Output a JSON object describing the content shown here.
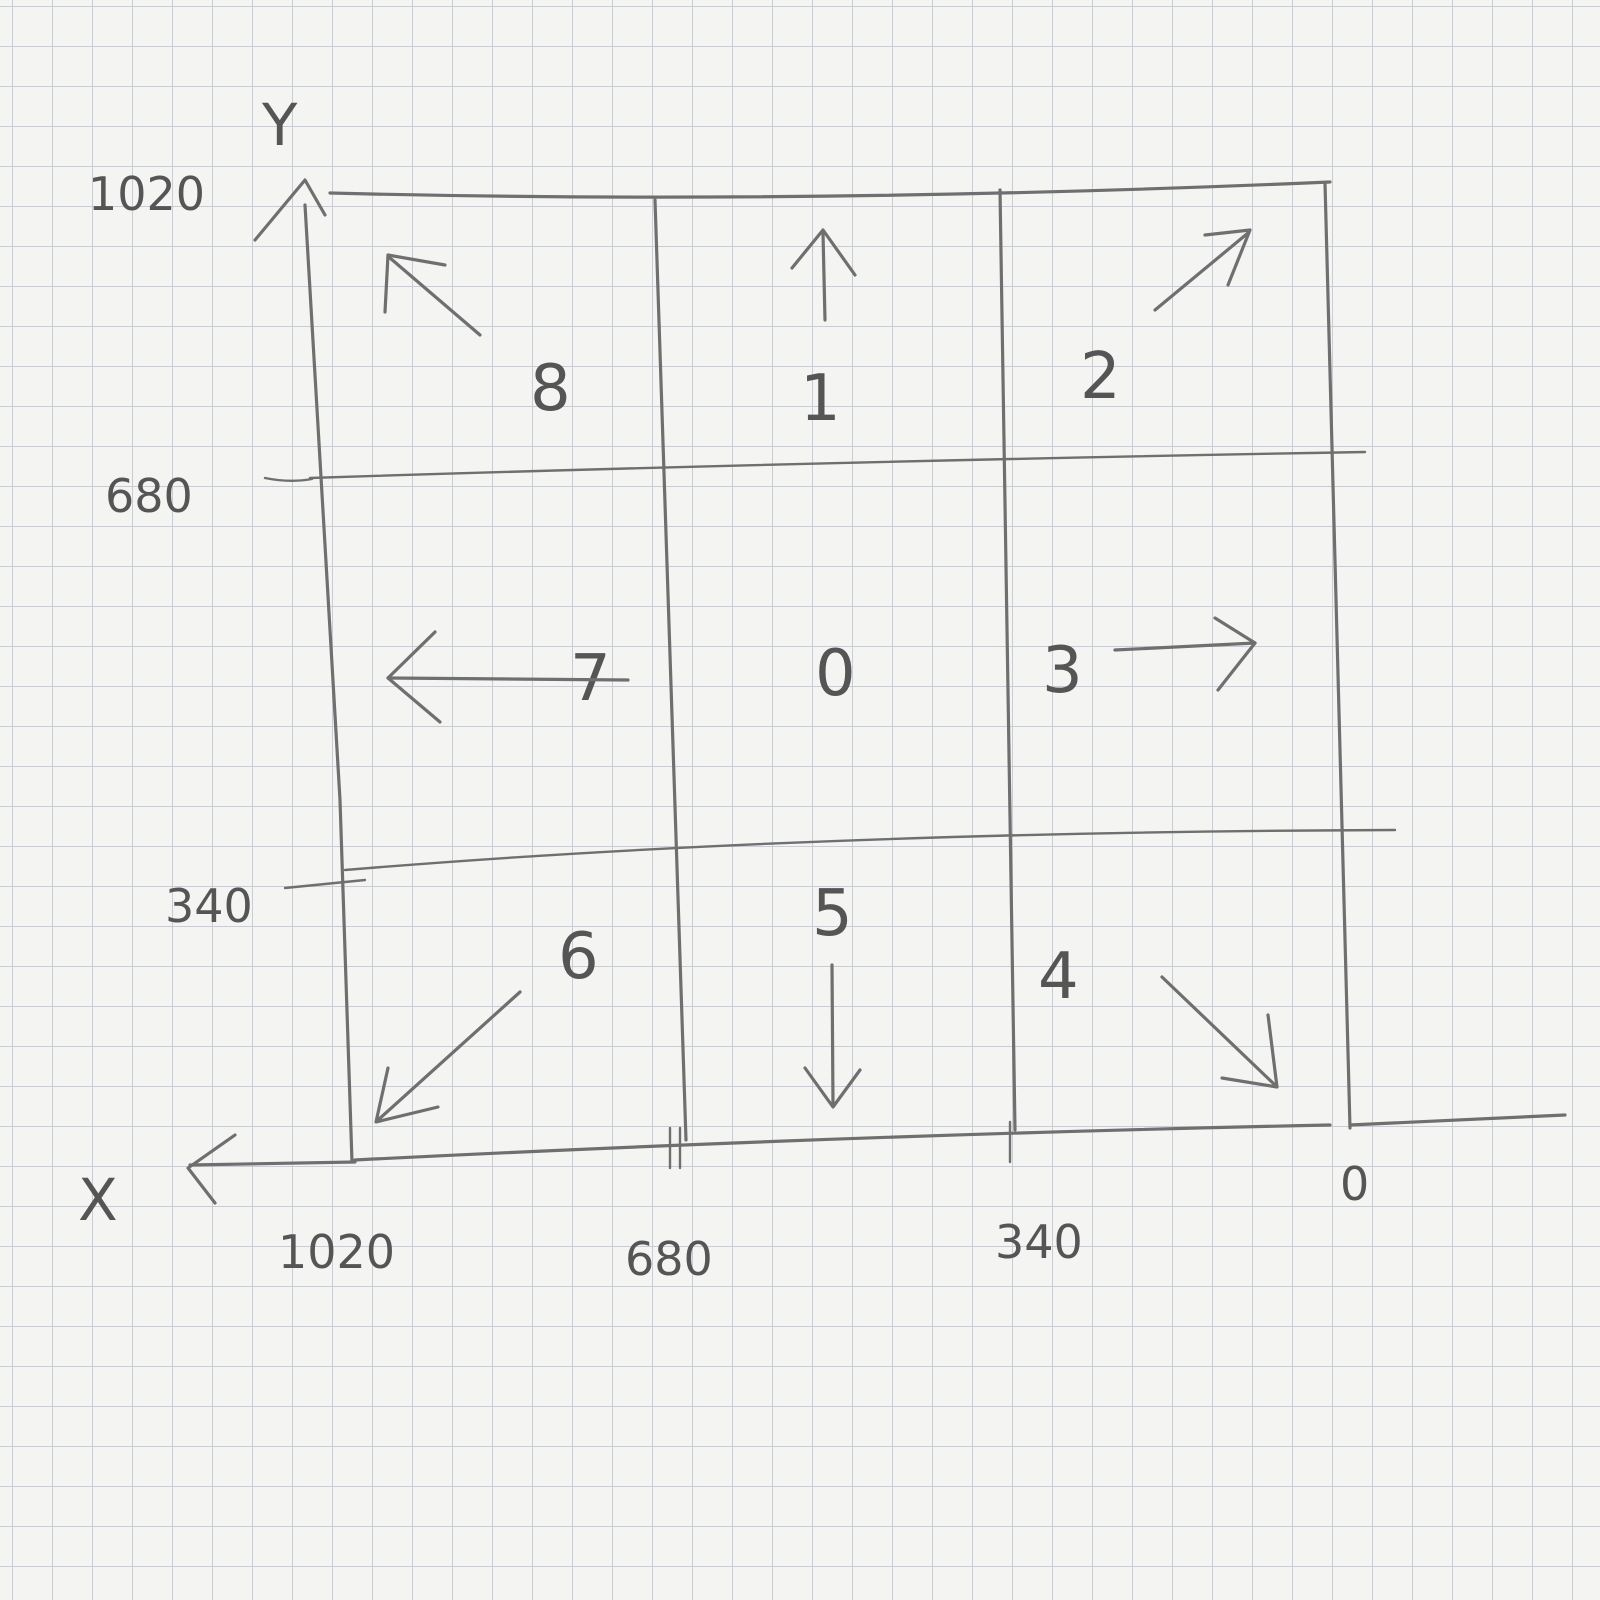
{
  "axes": {
    "x_label": "X",
    "y_label": "Y",
    "x_ticks": [
      "1020",
      "680",
      "340",
      "0"
    ],
    "y_ticks": [
      "1020",
      "680",
      "340"
    ]
  },
  "cells": [
    {
      "label": "8",
      "direction": "up-left"
    },
    {
      "label": "1",
      "direction": "up"
    },
    {
      "label": "2",
      "direction": "up-right"
    },
    {
      "label": "7",
      "direction": "left"
    },
    {
      "label": "0",
      "direction": "none"
    },
    {
      "label": "3",
      "direction": "right"
    },
    {
      "label": "6",
      "direction": "down-left"
    },
    {
      "label": "5",
      "direction": "down"
    },
    {
      "label": "4",
      "direction": "down-right"
    }
  ],
  "colors": {
    "paper": "#f4f4f2",
    "grid": "#c9ccd0",
    "pencil": "#6f6f6f"
  }
}
